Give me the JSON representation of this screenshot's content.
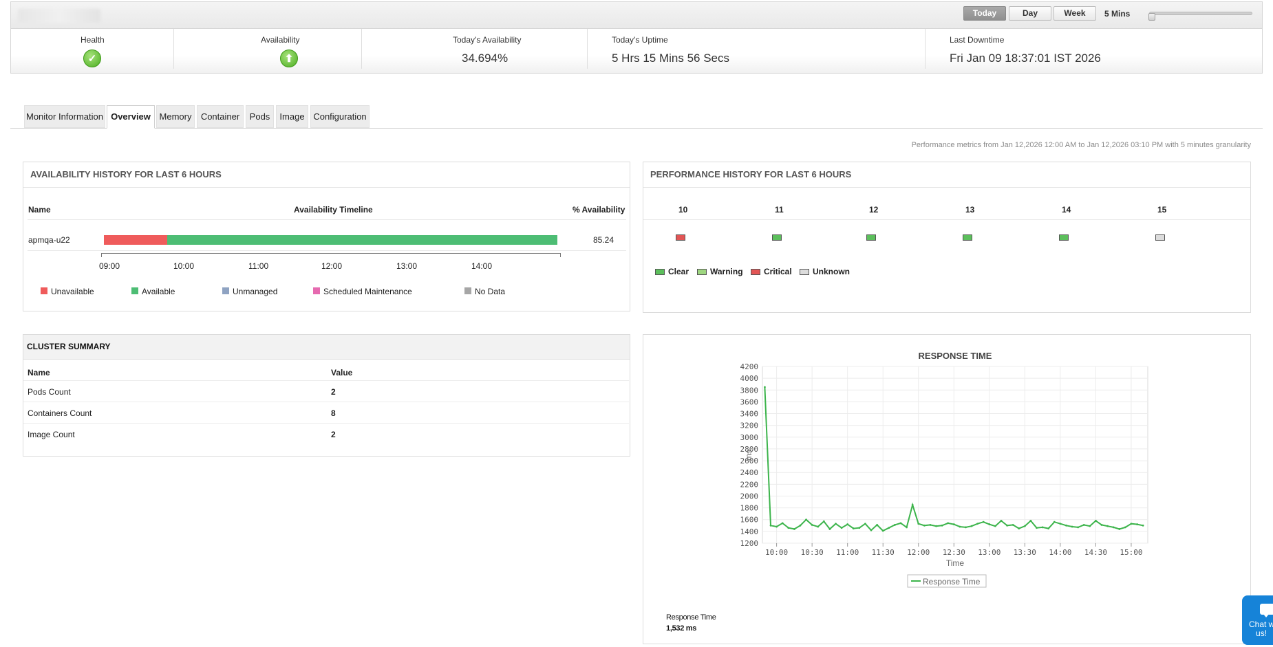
{
  "toolbar": {
    "ranges": [
      "Today",
      "Day",
      "Week"
    ],
    "active_range": "Today",
    "granularity": "5 Mins"
  },
  "summary": {
    "health_label": "Health",
    "health_icon": "check-circle-icon",
    "availability_label": "Availability",
    "availability_icon": "arrow-up-circle-icon",
    "todays_availability_label": "Today's Availability",
    "todays_availability_value": "34.694%",
    "todays_uptime_label": "Today's Uptime",
    "todays_uptime_value": "5 Hrs 15 Mins 56 Secs",
    "last_downtime_label": "Last Downtime",
    "last_downtime_value": "Fri Jan 09 18:37:01 IST 2026"
  },
  "tabs": [
    "Monitor Information",
    "Overview",
    "Memory",
    "Container",
    "Pods",
    "Image",
    "Configuration"
  ],
  "active_tab": "Overview",
  "perf_note": "Performance metrics from Jan 12,2026 12:00 AM to Jan 12,2026 03:10 PM with 5 minutes granularity",
  "availability_history": {
    "title": "AVAILABILITY HISTORY FOR LAST 6 HOURS",
    "columns": [
      "Name",
      "Availability Timeline",
      "% Availability"
    ],
    "row": {
      "name": "apmqa-u22",
      "percent": "85.24",
      "unavailable_fraction": 0.14,
      "available_fraction": 0.86
    },
    "time_labels": [
      "09:00",
      "10:00",
      "11:00",
      "12:00",
      "13:00",
      "14:00"
    ],
    "legend": [
      {
        "label": "Unavailable",
        "color": "#ef5b5b"
      },
      {
        "label": "Available",
        "color": "#4dbd74"
      },
      {
        "label": "Unmanaged",
        "color": "#8fa3c2"
      },
      {
        "label": "Scheduled Maintenance",
        "color": "#e66ab0"
      },
      {
        "label": "No Data",
        "color": "#a6a6a6"
      }
    ]
  },
  "performance_history": {
    "title": "PERFORMANCE HISTORY FOR LAST 6 HOURS",
    "hours": [
      "10",
      "11",
      "12",
      "13",
      "14",
      "15"
    ],
    "statuses": [
      "critical",
      "clear",
      "clear",
      "clear",
      "clear",
      "unknown"
    ],
    "legend": [
      {
        "label": "Clear",
        "color": "#5cbf5c"
      },
      {
        "label": "Warning",
        "color": "#9ed680"
      },
      {
        "label": "Critical",
        "color": "#e25555"
      },
      {
        "label": "Unknown",
        "color": "#dcdcdc"
      }
    ]
  },
  "cluster_summary": {
    "title": "CLUSTER SUMMARY",
    "columns": [
      "Name",
      "Value"
    ],
    "rows": [
      {
        "name": "Pods Count",
        "value": "2"
      },
      {
        "name": "Containers Count",
        "value": "8"
      },
      {
        "name": "Image Count",
        "value": "2"
      }
    ]
  },
  "response_time": {
    "footer_label": "Response Time",
    "footer_value": "1,532 ms"
  },
  "chart_data": {
    "type": "line",
    "title": "RESPONSE TIME",
    "xlabel": "Time",
    "ylabel": "ms",
    "ylim": [
      1200,
      4200
    ],
    "yticks": [
      1200,
      1400,
      1600,
      1800,
      2000,
      2200,
      2400,
      2600,
      2800,
      3000,
      3200,
      3400,
      3600,
      3800,
      4000,
      4200
    ],
    "xticks": [
      "10:00",
      "10:30",
      "11:00",
      "11:30",
      "12:00",
      "12:30",
      "13:00",
      "13:30",
      "14:00",
      "14:30",
      "15:00"
    ],
    "grid": true,
    "legend_placement": "bottom",
    "series": [
      {
        "name": "Response Time",
        "color": "#3cb44b",
        "x": [
          "09:50",
          "09:55",
          "10:00",
          "10:05",
          "10:10",
          "10:15",
          "10:20",
          "10:25",
          "10:30",
          "10:35",
          "10:40",
          "10:45",
          "10:50",
          "10:55",
          "11:00",
          "11:05",
          "11:10",
          "11:15",
          "11:20",
          "11:25",
          "11:30",
          "11:35",
          "11:40",
          "11:45",
          "11:50",
          "11:55",
          "12:00",
          "12:05",
          "12:10",
          "12:15",
          "12:20",
          "12:25",
          "12:30",
          "12:35",
          "12:40",
          "12:45",
          "12:50",
          "12:55",
          "13:00",
          "13:05",
          "13:10",
          "13:15",
          "13:20",
          "13:25",
          "13:30",
          "13:35",
          "13:40",
          "13:45",
          "13:50",
          "13:55",
          "14:00",
          "14:05",
          "14:10",
          "14:15",
          "14:20",
          "14:25",
          "14:30",
          "14:35",
          "14:40",
          "14:45",
          "14:50",
          "14:55",
          "15:00",
          "15:05",
          "15:10"
        ],
        "values": [
          3850,
          1500,
          1480,
          1540,
          1460,
          1440,
          1500,
          1600,
          1510,
          1480,
          1570,
          1440,
          1530,
          1460,
          1520,
          1450,
          1460,
          1530,
          1420,
          1510,
          1410,
          1460,
          1510,
          1540,
          1470,
          1850,
          1530,
          1500,
          1510,
          1490,
          1500,
          1540,
          1520,
          1480,
          1470,
          1490,
          1530,
          1560,
          1520,
          1490,
          1580,
          1500,
          1510,
          1450,
          1490,
          1580,
          1460,
          1470,
          1450,
          1560,
          1530,
          1500,
          1480,
          1470,
          1510,
          1490,
          1580,
          1510,
          1490,
          1470,
          1440,
          1470,
          1530,
          1520,
          1500
        ]
      }
    ]
  },
  "chat": {
    "label_line1": "Chat w",
    "label_line2": "us!",
    "icon": "chat-bubble-icon"
  }
}
